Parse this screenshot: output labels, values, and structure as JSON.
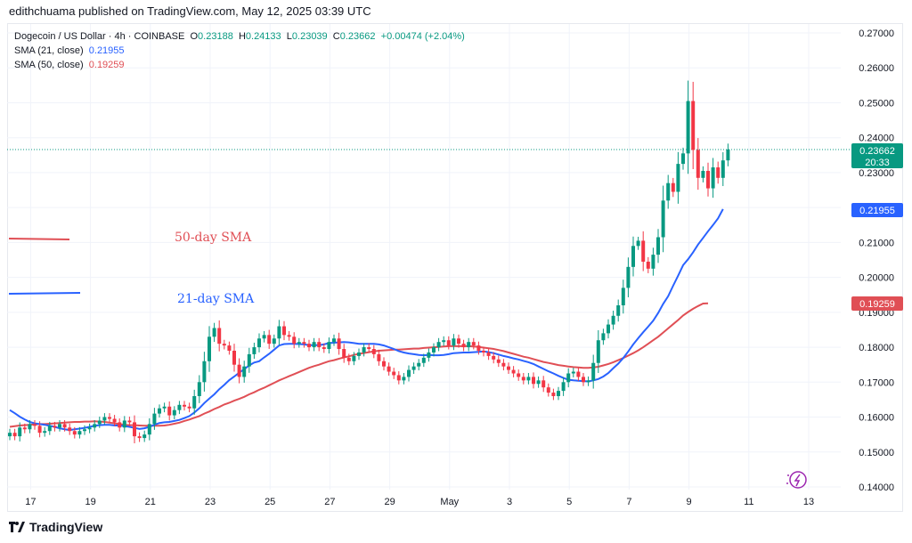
{
  "header": {
    "published": "edithchuama published on TradingView.com, May 12, 2025 03:39 UTC"
  },
  "legend": {
    "symbol": "Dogecoin / US Dollar · 4h · COINBASE",
    "o_label": "O",
    "o_value": "0.23188",
    "h_label": "H",
    "h_value": "0.24133",
    "l_label": "L",
    "l_value": "0.23039",
    "c_label": "C",
    "c_value": "0.23662",
    "change": "+0.00474 (+2.04%)",
    "sma21_label": "SMA (21, close)",
    "sma21_value": "0.21955",
    "sma50_label": "SMA (50, close)",
    "sma50_value": "0.19259"
  },
  "annotations": {
    "sma50_text": "50-day SMA",
    "sma21_text": "21-day SMA"
  },
  "price_labels": {
    "last": "0.23662",
    "countdown": "20:33",
    "sma21": "0.21955",
    "sma50": "0.19259"
  },
  "footer": {
    "brand": "TradingView"
  },
  "colors": {
    "up": "#089981",
    "down": "#f23645",
    "sma21": "#2962ff",
    "sma50": "#e04f55",
    "last_line": "#089981",
    "grid": "#f0f3fa"
  },
  "chart_data": {
    "type": "candlestick",
    "ylim": [
      0.14,
      0.27
    ],
    "y_ticks": [
      "0.27000",
      "0.26000",
      "0.25000",
      "0.24000",
      "0.23000",
      "0.22000",
      "0.21000",
      "0.20000",
      "0.19000",
      "0.18000",
      "0.17000",
      "0.16000",
      "0.15000",
      "0.14000"
    ],
    "x_ticks": [
      {
        "label": "17",
        "i": 4
      },
      {
        "label": "19",
        "i": 16
      },
      {
        "label": "21",
        "i": 28
      },
      {
        "label": "23",
        "i": 40
      },
      {
        "label": "25",
        "i": 52
      },
      {
        "label": "27",
        "i": 64
      },
      {
        "label": "29",
        "i": 76
      },
      {
        "label": "May",
        "i": 88
      },
      {
        "label": "3",
        "i": 100
      },
      {
        "label": "5",
        "i": 112
      },
      {
        "label": "7",
        "i": 124
      },
      {
        "label": "9",
        "i": 136
      },
      {
        "label": "11",
        "i": 148
      },
      {
        "label": "13",
        "i": 160
      }
    ],
    "last_price": 0.23662,
    "close": [
      0.1555,
      0.1545,
      0.157,
      0.1565,
      0.158,
      0.1575,
      0.1555,
      0.156,
      0.1575,
      0.157,
      0.158,
      0.157,
      0.156,
      0.155,
      0.156,
      0.1565,
      0.157,
      0.158,
      0.159,
      0.16,
      0.1595,
      0.1585,
      0.157,
      0.159,
      0.1585,
      0.1545,
      0.154,
      0.155,
      0.158,
      0.161,
      0.1625,
      0.163,
      0.1605,
      0.162,
      0.1635,
      0.163,
      0.1625,
      0.166,
      0.17,
      0.176,
      0.183,
      0.1855,
      0.181,
      0.1805,
      0.179,
      0.175,
      0.1715,
      0.1745,
      0.178,
      0.18,
      0.1825,
      0.1835,
      0.181,
      0.1825,
      0.186,
      0.1835,
      0.183,
      0.181,
      0.1815,
      0.181,
      0.18,
      0.1815,
      0.18,
      0.1795,
      0.1815,
      0.1825,
      0.1795,
      0.177,
      0.176,
      0.1775,
      0.1785,
      0.18,
      0.1795,
      0.178,
      0.176,
      0.1745,
      0.173,
      0.172,
      0.1705,
      0.1715,
      0.1735,
      0.1745,
      0.1755,
      0.177,
      0.1785,
      0.18,
      0.1815,
      0.182,
      0.1805,
      0.1825,
      0.181,
      0.18,
      0.1815,
      0.1805,
      0.179,
      0.1785,
      0.1775,
      0.1765,
      0.1755,
      0.1745,
      0.1735,
      0.1725,
      0.1715,
      0.1705,
      0.1715,
      0.1695,
      0.1705,
      0.1685,
      0.167,
      0.166,
      0.1675,
      0.17,
      0.1725,
      0.173,
      0.1715,
      0.17,
      0.1705,
      0.1755,
      0.182,
      0.184,
      0.1865,
      0.189,
      0.192,
      0.197,
      0.203,
      0.209,
      0.2105,
      0.2045,
      0.2025,
      0.2065,
      0.2115,
      0.222,
      0.227,
      0.2245,
      0.2325,
      0.2355,
      0.2505,
      0.2365,
      0.2285,
      0.2305,
      0.2255,
      0.2315,
      0.2285,
      0.2335,
      0.23662
    ],
    "sma21": [
      0.162,
      0.1611,
      0.1601,
      0.1593,
      0.1586,
      0.1582,
      0.158,
      0.1578,
      0.1575,
      0.1572,
      0.1568,
      0.1565,
      0.1563,
      0.1565,
      0.1567,
      0.1569,
      0.1572,
      0.1575,
      0.1577,
      0.1578,
      0.1578,
      0.1576,
      0.1576,
      0.1574,
      0.1572,
      0.1569,
      0.1566,
      0.1568,
      0.1572,
      0.1578,
      0.1583,
      0.1585,
      0.1586,
      0.1589,
      0.1592,
      0.1597,
      0.1603,
      0.1613,
      0.1625,
      0.164,
      0.1653,
      0.1665,
      0.168,
      0.1692,
      0.1706,
      0.1716,
      0.1727,
      0.1737,
      0.1748,
      0.1756,
      0.176,
      0.1771,
      0.1781,
      0.1793,
      0.1805,
      0.1809,
      0.181,
      0.181,
      0.1809,
      0.1808,
      0.1806,
      0.1806,
      0.1806,
      0.1808,
      0.1812,
      0.1813,
      0.1814,
      0.1815,
      0.1814,
      0.1812,
      0.181,
      0.181,
      0.181,
      0.181,
      0.1808,
      0.1805,
      0.18,
      0.1795,
      0.1789,
      0.1785,
      0.1782,
      0.178,
      0.1778,
      0.1777,
      0.1778,
      0.1777,
      0.1777,
      0.1778,
      0.178,
      0.1783,
      0.1784,
      0.1785,
      0.1785,
      0.1786,
      0.1787,
      0.1788,
      0.1786,
      0.1783,
      0.1779,
      0.1775,
      0.1772,
      0.1768,
      0.1765,
      0.1761,
      0.1757,
      0.1752,
      0.1745,
      0.1738,
      0.1731,
      0.1725,
      0.1718,
      0.1712,
      0.1707,
      0.1705,
      0.1704,
      0.1703,
      0.1702,
      0.1705,
      0.1709,
      0.1716,
      0.1726,
      0.174,
      0.1753,
      0.1769,
      0.1788,
      0.1808,
      0.1826,
      0.1843,
      0.1859,
      0.1876,
      0.1898,
      0.1924,
      0.1946,
      0.1976,
      0.2005,
      0.2035,
      0.2052,
      0.2072,
      0.2094,
      0.2113,
      0.2132,
      0.215,
      0.2169,
      0.21955
    ],
    "sma50": [
      0.1572,
      0.1574,
      0.1576,
      0.1577,
      0.1578,
      0.1579,
      0.158,
      0.158,
      0.1581,
      0.1582,
      0.1583,
      0.1584,
      0.1585,
      0.1586,
      0.1586,
      0.1587,
      0.1587,
      0.1588,
      0.1587,
      0.1586,
      0.1584,
      0.1582,
      0.158,
      0.1578,
      0.1577,
      0.1577,
      0.1576,
      0.1575,
      0.1575,
      0.1575,
      0.1575,
      0.1576,
      0.1578,
      0.1581,
      0.1584,
      0.1589,
      0.1593,
      0.1598,
      0.1603,
      0.161,
      0.1616,
      0.1623,
      0.1629,
      0.1636,
      0.1641,
      0.1647,
      0.1652,
      0.1658,
      0.1665,
      0.1671,
      0.1678,
      0.1684,
      0.1691,
      0.1698,
      0.1705,
      0.1711,
      0.1717,
      0.1723,
      0.1729,
      0.1735,
      0.1741,
      0.1746,
      0.175,
      0.1755,
      0.176,
      0.1763,
      0.1767,
      0.1771,
      0.1774,
      0.1778,
      0.1781,
      0.1783,
      0.1786,
      0.1788,
      0.179,
      0.1791,
      0.1792,
      0.1793,
      0.1793,
      0.1794,
      0.1795,
      0.1796,
      0.1796,
      0.1798,
      0.1799,
      0.18,
      0.1801,
      0.1802,
      0.1803,
      0.1803,
      0.1803,
      0.1803,
      0.1803,
      0.1802,
      0.1801,
      0.1799,
      0.1797,
      0.1795,
      0.1792,
      0.1789,
      0.1785,
      0.1781,
      0.1777,
      0.1773,
      0.177,
      0.1766,
      0.1762,
      0.1758,
      0.1755,
      0.1752,
      0.1749,
      0.1747,
      0.1745,
      0.1743,
      0.1742,
      0.1741,
      0.1741,
      0.1742,
      0.1744,
      0.1748,
      0.1752,
      0.1757,
      0.1763,
      0.1769,
      0.1776,
      0.1783,
      0.1791,
      0.18,
      0.181,
      0.182,
      0.183,
      0.1842,
      0.1854,
      0.1866,
      0.1878,
      0.1891,
      0.1901,
      0.191,
      0.1918,
      0.1925,
      0.19259
    ]
  }
}
